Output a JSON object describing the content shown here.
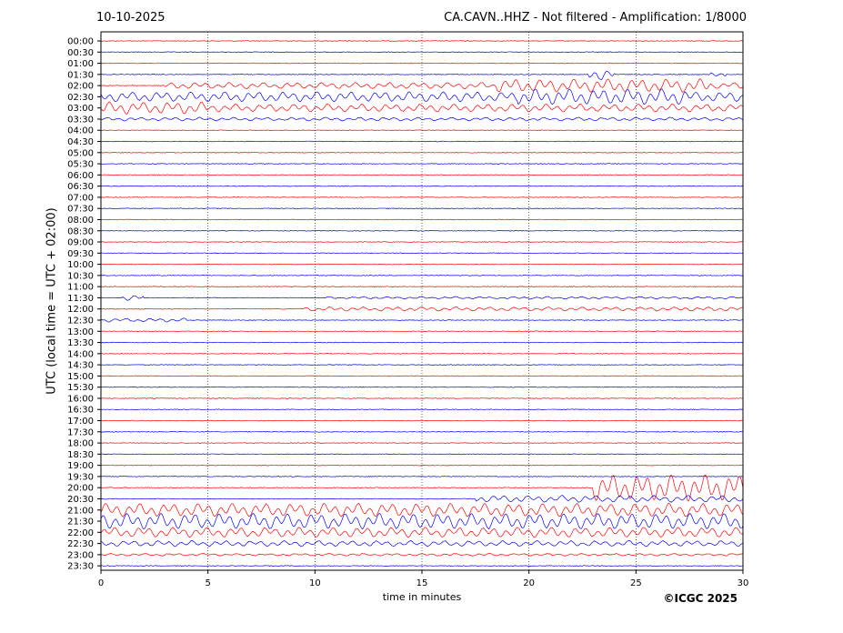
{
  "header": {
    "date": "10-10-2025",
    "title": "CA.CAVN..HHZ - Not filtered - Amplification: 1/8000"
  },
  "footer": {
    "copyright": "©ICGC 2025"
  },
  "colors": {
    "trace_a": "#ff0000",
    "trace_b": "#0000ff",
    "grid": "#000000"
  },
  "chart_data": {
    "type": "line",
    "title": "CA.CAVN..HHZ - Not filtered - Amplification: 1/8000",
    "xlabel": "time in minutes",
    "ylabel": "UTC (local time = UTC + 02:00)",
    "xlim": [
      0,
      30
    ],
    "x_ticks": [
      "0",
      "5",
      "10",
      "15",
      "20",
      "25",
      "30"
    ],
    "grid": "vertical dotted lines at x ticks",
    "row_labels": [
      "00:00",
      "00:30",
      "01:00",
      "01:30",
      "02:00",
      "02:30",
      "03:00",
      "03:30",
      "04:00",
      "04:30",
      "05:00",
      "05:30",
      "06:00",
      "06:30",
      "07:00",
      "07:30",
      "08:00",
      "08:30",
      "09:00",
      "09:30",
      "10:00",
      "10:30",
      "11:00",
      "11:30",
      "12:00",
      "12:30",
      "13:00",
      "13:30",
      "14:00",
      "14:30",
      "15:00",
      "15:30",
      "16:00",
      "16:30",
      "17:00",
      "17:30",
      "18:00",
      "18:30",
      "19:00",
      "19:30",
      "20:00",
      "20:30",
      "21:00",
      "21:30",
      "22:00",
      "22:30",
      "23:00",
      "23:30"
    ],
    "row_colors": [
      "#ff0000",
      "#0000ff"
    ],
    "activity": [
      {
        "row": "01:30",
        "start": 22.8,
        "end": 24.0,
        "amp": 1.0
      },
      {
        "row": "01:30",
        "start": 28.5,
        "end": 29.2,
        "amp": 0.4
      },
      {
        "row": "02:00",
        "start": 3.0,
        "end": 30,
        "amp": 0.55
      },
      {
        "row": "02:00",
        "start": 18.5,
        "end": 28.5,
        "amp": 1.2
      },
      {
        "row": "02:30",
        "start": 0,
        "end": 30,
        "amp": 0.9
      },
      {
        "row": "02:30",
        "start": 19.5,
        "end": 27.5,
        "amp": 1.4
      },
      {
        "row": "03:00",
        "start": 0,
        "end": 30,
        "amp": 0.7
      },
      {
        "row": "03:00",
        "start": 0,
        "end": 5,
        "amp": 1.1
      },
      {
        "row": "03:30",
        "start": 0,
        "end": 30,
        "amp": 0.3
      },
      {
        "row": "11:30",
        "start": 1.0,
        "end": 2.0,
        "amp": 0.5
      },
      {
        "row": "11:30",
        "start": 10.5,
        "end": 30,
        "amp": 0.2
      },
      {
        "row": "12:00",
        "start": 9.5,
        "end": 30,
        "amp": 0.35
      },
      {
        "row": "12:30",
        "start": 0,
        "end": 4.0,
        "amp": 0.3
      },
      {
        "row": "20:00",
        "start": 23.0,
        "end": 30,
        "amp": 2.4
      },
      {
        "row": "20:30",
        "start": 17.5,
        "end": 30,
        "amp": 0.6
      },
      {
        "row": "21:00",
        "start": 0,
        "end": 30,
        "amp": 1.2
      },
      {
        "row": "21:30",
        "start": 0,
        "end": 30,
        "amp": 1.4
      },
      {
        "row": "22:00",
        "start": 0,
        "end": 30,
        "amp": 0.9
      },
      {
        "row": "22:30",
        "start": 0,
        "end": 30,
        "amp": 0.5
      },
      {
        "row": "23:00",
        "start": 0,
        "end": 30,
        "amp": 0.2
      }
    ]
  }
}
